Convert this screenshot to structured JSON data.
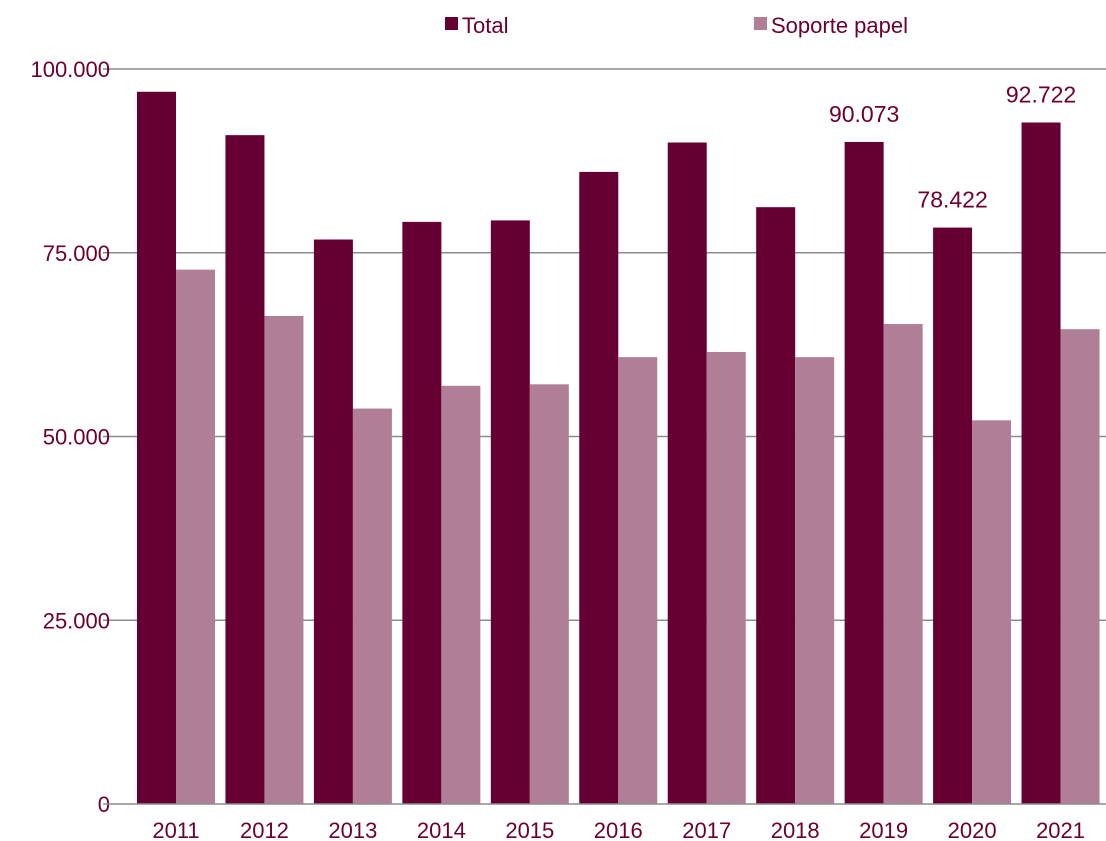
{
  "chart_data": {
    "type": "bar",
    "categories": [
      "2011",
      "2012",
      "2013",
      "2014",
      "2015",
      "2016",
      "2017",
      "2018",
      "2019",
      "2020",
      "2021"
    ],
    "series": [
      {
        "name": "Total",
        "color": "#660033",
        "values": [
          96900,
          91000,
          76800,
          79200,
          79400,
          86000,
          90000,
          81200,
          90073,
          78422,
          92722
        ]
      },
      {
        "name": "Soporte papel",
        "color": "#b07e96",
        "values": [
          72700,
          66400,
          53800,
          56900,
          57100,
          60800,
          61500,
          60800,
          65300,
          52200,
          64600
        ]
      }
    ],
    "data_labels": [
      {
        "category": "2019",
        "text": "90.073"
      },
      {
        "category": "2020",
        "text": "78.422"
      },
      {
        "category": "2021",
        "text": "92.722"
      }
    ],
    "yticks": [
      "0",
      "25.000",
      "50.000",
      "75.000",
      "100.000"
    ],
    "ylim": [
      0,
      100000
    ],
    "grid": true,
    "legend": "top",
    "grid_color": "#8c8c8c",
    "text_color": "#6b0030"
  }
}
